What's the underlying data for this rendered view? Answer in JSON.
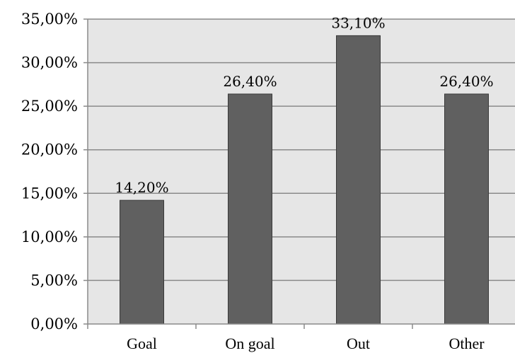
{
  "chart_data": {
    "type": "bar",
    "title": "",
    "xlabel": "",
    "ylabel": "",
    "categories": [
      "Goal",
      "On goal",
      "Out",
      "Other"
    ],
    "values": [
      14.2,
      26.4,
      33.1,
      26.4
    ],
    "data_labels": [
      "14,20%",
      "26,40%",
      "33,10%",
      "26,40%"
    ],
    "ylim": [
      0,
      35
    ],
    "yticks": [
      0,
      5,
      10,
      15,
      20,
      25,
      30,
      35
    ],
    "ytick_labels": [
      "0,00%",
      "5,00%",
      "10,00%",
      "15,00%",
      "20,00%",
      "25,00%",
      "30,00%",
      "35,00%"
    ],
    "grid": true,
    "legend": "none",
    "colors": {
      "bar": "#606060",
      "bar_border": "#3a3a3a",
      "plot_background": "#e6e6e6",
      "gridline": "#8a8a8a",
      "axis": "#8a8a8a"
    }
  }
}
